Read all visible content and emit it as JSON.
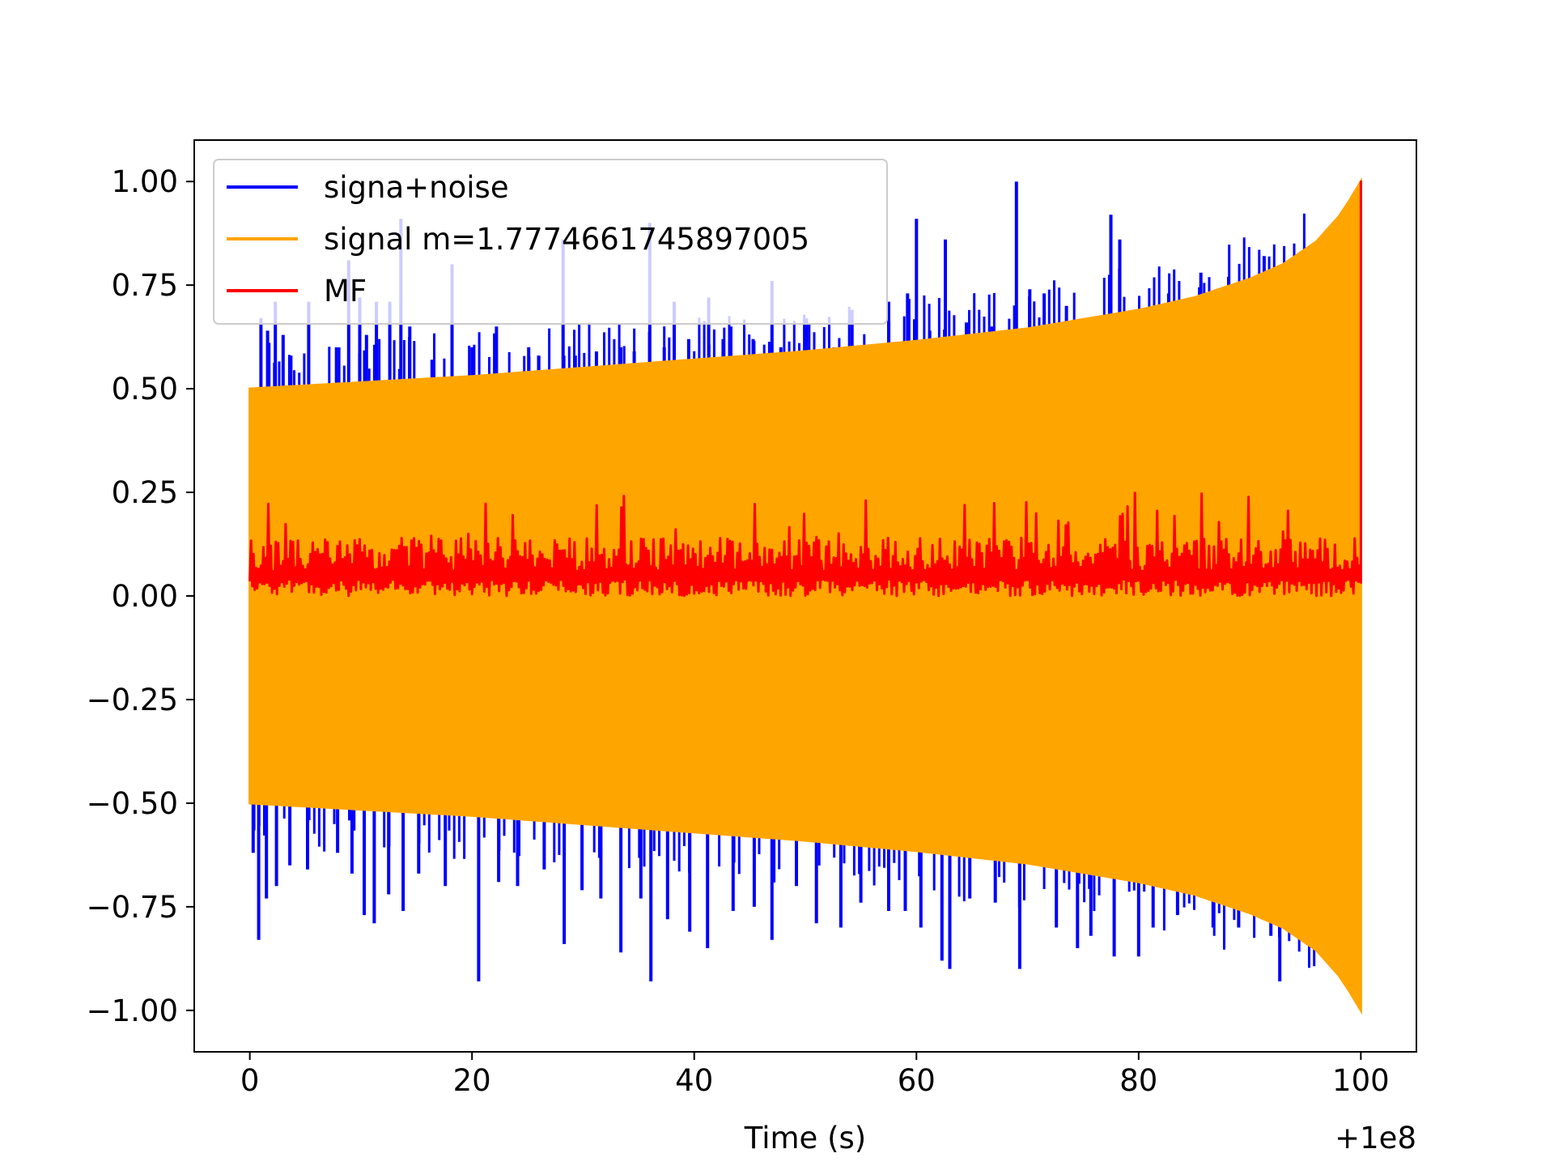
{
  "chart_data": {
    "type": "line",
    "title": "",
    "xlabel": "Time (s)",
    "ylabel": "",
    "x_offset_label": "+1e8",
    "xlim": [
      -5,
      105
    ],
    "ylim": [
      -1.1,
      1.1
    ],
    "xticks": [
      0,
      20,
      40,
      60,
      80,
      100
    ],
    "xtick_labels": [
      "0",
      "20",
      "40",
      "60",
      "80",
      "100"
    ],
    "yticks": [
      1.0,
      0.75,
      0.5,
      0.25,
      0.0,
      -0.25,
      -0.5,
      -0.75,
      -1.0
    ],
    "ytick_labels": [
      "1.00",
      "0.75",
      "0.50",
      "0.25",
      "0.00",
      "−0.25",
      "−0.50",
      "−0.75",
      "−1.00"
    ],
    "grid": false,
    "legend_position": "upper-left",
    "series": [
      {
        "name": "signa+noise",
        "color": "#0000ff",
        "kind": "noisy",
        "x_range": [
          0,
          100
        ],
        "upper_spikes": [
          [
            1.0,
            0.67
          ],
          [
            1.6,
            0.64
          ],
          [
            2.3,
            0.71
          ],
          [
            3.0,
            0.63
          ],
          [
            3.7,
            0.58
          ],
          [
            5.3,
            0.71
          ],
          [
            7.8,
            0.6
          ],
          [
            8.9,
            0.81
          ],
          [
            9.9,
            0.72
          ],
          [
            10.5,
            0.63
          ],
          [
            11.4,
            0.71
          ],
          [
            12.6,
            0.71
          ],
          [
            13.6,
            0.91
          ],
          [
            14.4,
            0.65
          ],
          [
            16.4,
            0.57
          ],
          [
            18.2,
            0.8
          ],
          [
            20.0,
            0.6
          ],
          [
            22.2,
            0.65
          ],
          [
            25.1,
            0.6
          ],
          [
            26.0,
            0.58
          ],
          [
            28.2,
            0.86
          ],
          [
            29.3,
            0.58
          ],
          [
            31.2,
            0.59
          ],
          [
            33.4,
            0.6
          ],
          [
            34.6,
            0.59
          ],
          [
            36.0,
            0.9
          ],
          [
            37.3,
            0.6
          ],
          [
            38.2,
            0.71
          ],
          [
            39.5,
            0.62
          ],
          [
            41.3,
            0.72
          ],
          [
            42.6,
            0.62
          ],
          [
            43.3,
            0.65
          ],
          [
            45.3,
            0.62
          ],
          [
            47.0,
            0.76
          ],
          [
            47.8,
            0.6
          ],
          [
            50.1,
            0.67
          ],
          [
            52.6,
            0.6
          ],
          [
            54.2,
            0.69
          ],
          [
            55.1,
            0.6
          ],
          [
            57.5,
            0.71
          ],
          [
            59.2,
            0.73
          ],
          [
            60.0,
            0.91
          ],
          [
            61.2,
            0.64
          ],
          [
            62.6,
            0.86
          ],
          [
            64.5,
            0.66
          ],
          [
            66.8,
            0.65
          ],
          [
            69.0,
            1.0
          ],
          [
            70.2,
            0.74
          ],
          [
            71.5,
            0.73
          ],
          [
            73.5,
            0.7
          ],
          [
            75.7,
            0.66
          ],
          [
            77.5,
            0.92
          ],
          [
            78.3,
            0.86
          ],
          [
            80.5,
            0.65
          ],
          [
            82.7,
            0.73
          ],
          [
            85.6,
            0.78
          ],
          [
            88.1,
            0.77
          ],
          [
            91.3,
            0.82
          ],
          [
            93.6,
            0.8
          ]
        ],
        "lower_spikes": [
          [
            0.3,
            -0.62
          ],
          [
            0.8,
            -0.83
          ],
          [
            1.5,
            -0.73
          ],
          [
            2.4,
            -0.7
          ],
          [
            3.6,
            -0.65
          ],
          [
            5.2,
            -0.66
          ],
          [
            7.9,
            -0.62
          ],
          [
            9.2,
            -0.67
          ],
          [
            10.3,
            -0.77
          ],
          [
            11.2,
            -0.79
          ],
          [
            12.5,
            -0.72
          ],
          [
            13.8,
            -0.76
          ],
          [
            15.2,
            -0.67
          ],
          [
            17.6,
            -0.7
          ],
          [
            20.6,
            -0.93
          ],
          [
            22.4,
            -0.69
          ],
          [
            24.1,
            -0.7
          ],
          [
            26.5,
            -0.66
          ],
          [
            28.3,
            -0.84
          ],
          [
            29.9,
            -0.71
          ],
          [
            31.6,
            -0.73
          ],
          [
            33.4,
            -0.86
          ],
          [
            35.2,
            -0.73
          ],
          [
            36.1,
            -0.93
          ],
          [
            37.6,
            -0.78
          ],
          [
            39.6,
            -0.81
          ],
          [
            41.2,
            -0.85
          ],
          [
            43.5,
            -0.76
          ],
          [
            45.4,
            -0.75
          ],
          [
            47.0,
            -0.83
          ],
          [
            49.2,
            -0.7
          ],
          [
            51.0,
            -0.79
          ],
          [
            53.2,
            -0.8
          ],
          [
            55.0,
            -0.74
          ],
          [
            57.5,
            -0.76
          ],
          [
            59.0,
            -0.76
          ],
          [
            60.4,
            -0.8
          ],
          [
            62.3,
            -0.88
          ],
          [
            63.0,
            -0.9
          ],
          [
            64.8,
            -0.73
          ],
          [
            67.1,
            -0.74
          ],
          [
            69.3,
            -0.9
          ],
          [
            72.6,
            -0.8
          ],
          [
            74.5,
            -0.85
          ],
          [
            75.7,
            -0.82
          ],
          [
            77.8,
            -0.87
          ],
          [
            80.0,
            -0.87
          ],
          [
            81.3,
            -0.8
          ],
          [
            83.5,
            -0.77
          ],
          [
            86.7,
            -0.8
          ],
          [
            89.0,
            -0.8
          ],
          [
            91.9,
            -0.82
          ],
          [
            92.7,
            -0.93
          ]
        ]
      },
      {
        "name": "signal m=1.7774661745897005",
        "color": "#ffa500",
        "kind": "chirp-envelope",
        "x_range": [
          0,
          100
        ],
        "envelope": {
          "x": [
            0,
            10,
            20,
            30,
            40,
            50,
            60,
            70,
            80,
            85,
            90,
            93,
            96,
            98,
            99,
            100
          ],
          "amplitude": [
            0.5,
            0.515,
            0.53,
            0.55,
            0.57,
            0.59,
            0.615,
            0.645,
            0.69,
            0.72,
            0.765,
            0.8,
            0.855,
            0.915,
            0.955,
            1.0
          ]
        }
      },
      {
        "name": "MF",
        "color": "#ff0000",
        "kind": "noisy-band",
        "x_range": [
          0,
          100
        ],
        "band_lower": 0.0,
        "band_upper_typical": 0.14,
        "band_upper_max": 0.25,
        "final_peak": {
          "x": 100,
          "y": 1.0
        }
      }
    ]
  }
}
